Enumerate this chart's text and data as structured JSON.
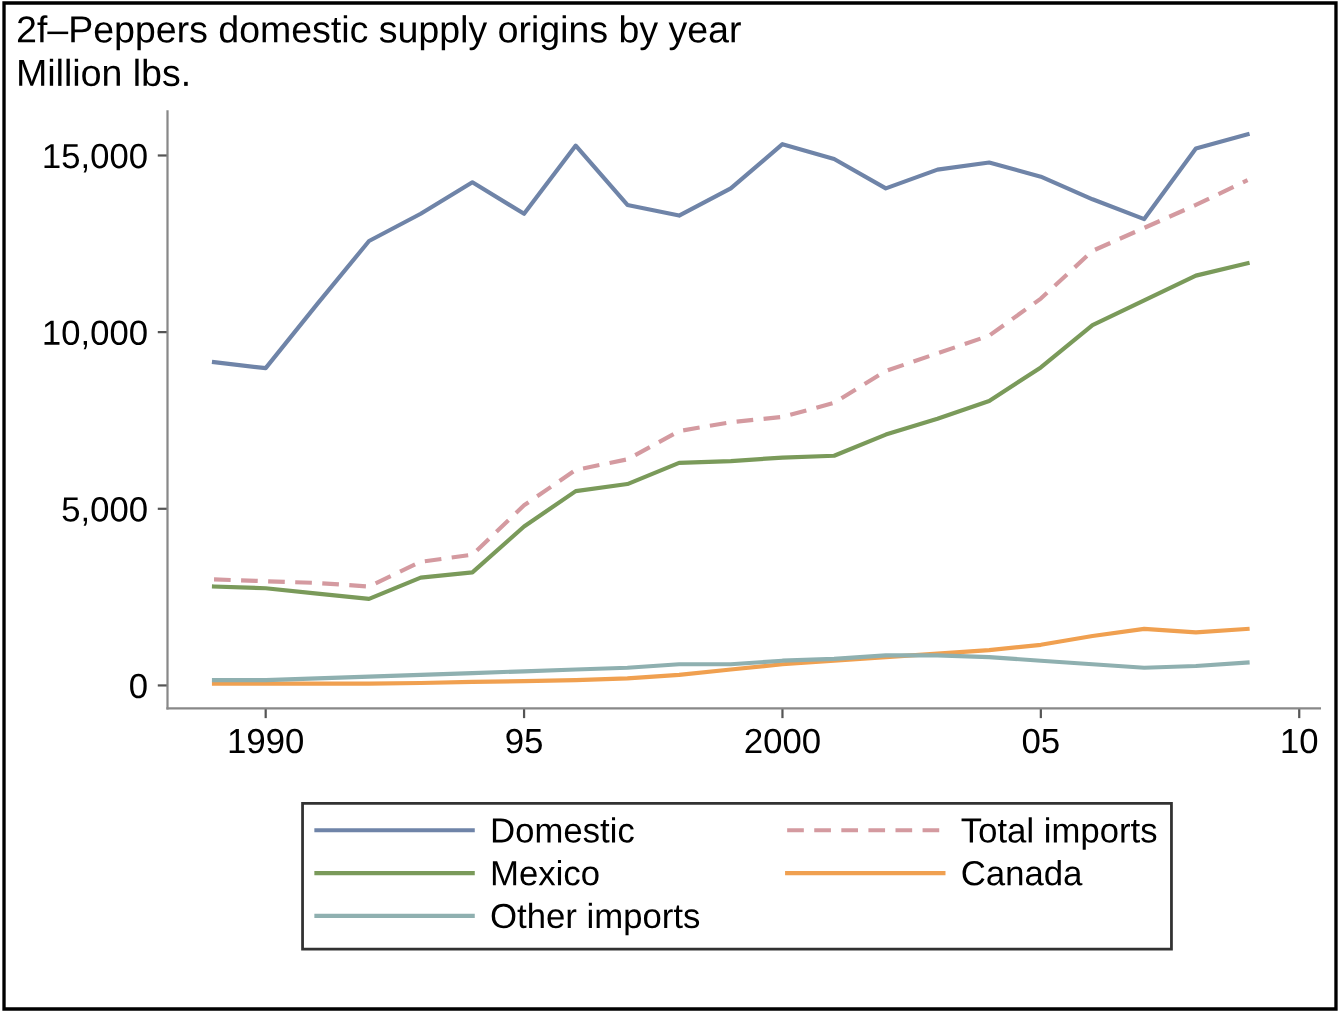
{
  "chart_data": {
    "type": "line",
    "title": "2f–Peppers domestic supply origins by year",
    "subtitle": "Million lbs.",
    "x": [
      1989,
      1990,
      1991,
      1992,
      1993,
      1994,
      1995,
      1996,
      1997,
      1998,
      1999,
      2000,
      2001,
      2002,
      2003,
      2004,
      2005,
      2006,
      2007,
      2008,
      2009
    ],
    "series": [
      {
        "name": "Domestic",
        "color": "#6f84a8",
        "line_style": "solid",
        "values": [
          9150,
          8980,
          10800,
          12580,
          13350,
          14240,
          13350,
          15280,
          13600,
          13300,
          14070,
          15320,
          14900,
          14070,
          14600,
          14800,
          14400,
          13760,
          13200,
          15200,
          15600
        ]
      },
      {
        "name": "Total imports",
        "color": "#d49aa0",
        "line_style": "dashed",
        "values": [
          3000,
          2950,
          2900,
          2800,
          3500,
          3700,
          5100,
          6100,
          6400,
          7200,
          7450,
          7600,
          8000,
          8900,
          9400,
          9900,
          10950,
          12300,
          12950,
          13600,
          14300
        ]
      },
      {
        "name": "Mexico",
        "color": "#7a9a5a",
        "line_style": "solid",
        "values": [
          2800,
          2750,
          2600,
          2450,
          3050,
          3200,
          4500,
          5500,
          5700,
          6300,
          6350,
          6450,
          6500,
          7100,
          7550,
          8050,
          9000,
          10200,
          10900,
          11600,
          11950
        ]
      },
      {
        "name": "Canada",
        "color": "#f0a050",
        "line_style": "solid",
        "values": [
          50,
          50,
          50,
          50,
          70,
          100,
          120,
          150,
          200,
          300,
          450,
          600,
          700,
          800,
          900,
          1000,
          1150,
          1400,
          1600,
          1500,
          1600
        ]
      },
      {
        "name": "Other imports",
        "color": "#8fb0b0",
        "line_style": "solid",
        "values": [
          150,
          150,
          200,
          250,
          300,
          350,
          400,
          450,
          500,
          600,
          600,
          700,
          750,
          850,
          850,
          800,
          700,
          600,
          500,
          550,
          650
        ]
      }
    ],
    "xlim": [
      1988.1,
      2010.4
    ],
    "ylim": [
      -650,
      16250
    ],
    "xticks": [
      1990,
      {
        "value": 1995,
        "label": "95"
      },
      2000,
      {
        "value": 2005,
        "label": "05"
      },
      {
        "value": 2010,
        "label": "10"
      }
    ],
    "yticks": [
      {
        "value": 0,
        "label": "0"
      },
      {
        "value": 5000,
        "label": "5,000"
      },
      {
        "value": 10000,
        "label": "10,000"
      },
      {
        "value": 15000,
        "label": "15,000"
      }
    ],
    "grid": false,
    "legend": "bottom"
  }
}
